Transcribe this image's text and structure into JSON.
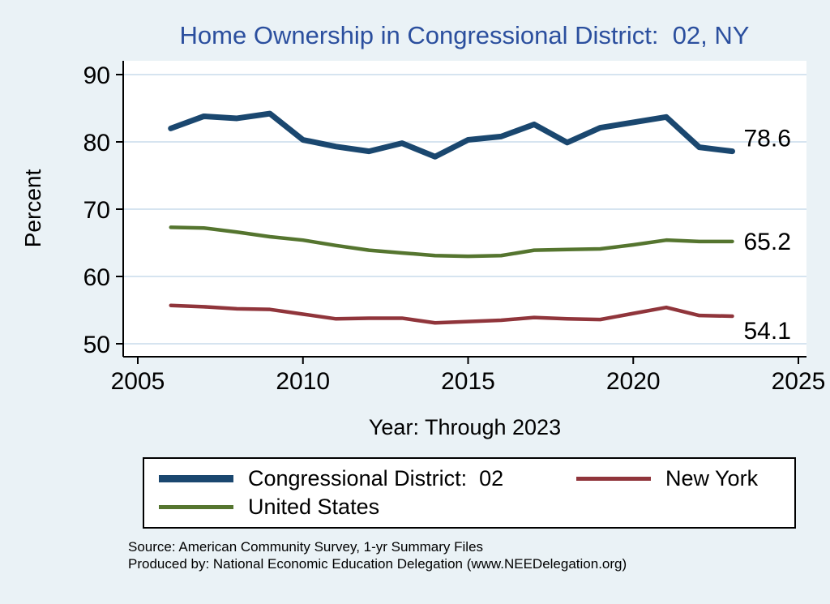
{
  "colors": {
    "background": "#eaf2f6",
    "plot_background": "#ffffff",
    "grid": "#c9dcec",
    "axis": "#000000",
    "title": "#2b4f9e",
    "cd02": "#1a476f",
    "new_york": "#90353b",
    "united_states": "#55752f"
  },
  "chart": {
    "title": "Home Ownership in Congressional District:  02, NY",
    "xlabel": "Year: Through 2023",
    "ylabel": "Percent"
  },
  "chart_data": {
    "type": "line",
    "title": "Home Ownership in Congressional District:  02, NY",
    "xlabel": "Year: Through 2023",
    "ylabel": "Percent",
    "xlim": [
      2005,
      2025
    ],
    "ylim": [
      50,
      90
    ],
    "x_ticks": [
      2005,
      2010,
      2015,
      2020,
      2025
    ],
    "y_ticks": [
      50,
      60,
      70,
      80,
      90
    ],
    "grid": true,
    "legend_position": "bottom",
    "x": [
      2006,
      2007,
      2008,
      2009,
      2010,
      2011,
      2012,
      2013,
      2014,
      2015,
      2016,
      2017,
      2018,
      2019,
      2020,
      2021,
      2022,
      2023
    ],
    "series": [
      {
        "name": "Congressional District:  02",
        "color": "#1a476f",
        "width": 7,
        "end_label": "78.6",
        "values": [
          82.0,
          83.8,
          83.5,
          84.2,
          80.3,
          79.3,
          78.6,
          79.8,
          77.8,
          80.3,
          80.8,
          82.6,
          79.9,
          82.1,
          82.9,
          83.7,
          79.2,
          78.6
        ]
      },
      {
        "name": "New York",
        "color": "#90353b",
        "width": 4.5,
        "end_label": "54.1",
        "values": [
          55.7,
          55.5,
          55.2,
          55.1,
          54.4,
          53.7,
          53.8,
          53.8,
          53.1,
          53.3,
          53.5,
          53.9,
          53.7,
          53.6,
          54.5,
          55.4,
          54.2,
          54.1
        ]
      },
      {
        "name": "United States",
        "color": "#55752f",
        "width": 4.5,
        "end_label": "65.2",
        "values": [
          67.3,
          67.2,
          66.6,
          65.9,
          65.4,
          64.6,
          63.9,
          63.5,
          63.1,
          63.0,
          63.1,
          63.9,
          64.0,
          64.1,
          64.7,
          65.4,
          65.2,
          65.2
        ]
      }
    ]
  },
  "footer": {
    "source": "Source: American Community Survey, 1-yr Summary Files",
    "produced_by": "Produced by: National Economic Education Delegation (www.NEEDelegation.org)"
  }
}
